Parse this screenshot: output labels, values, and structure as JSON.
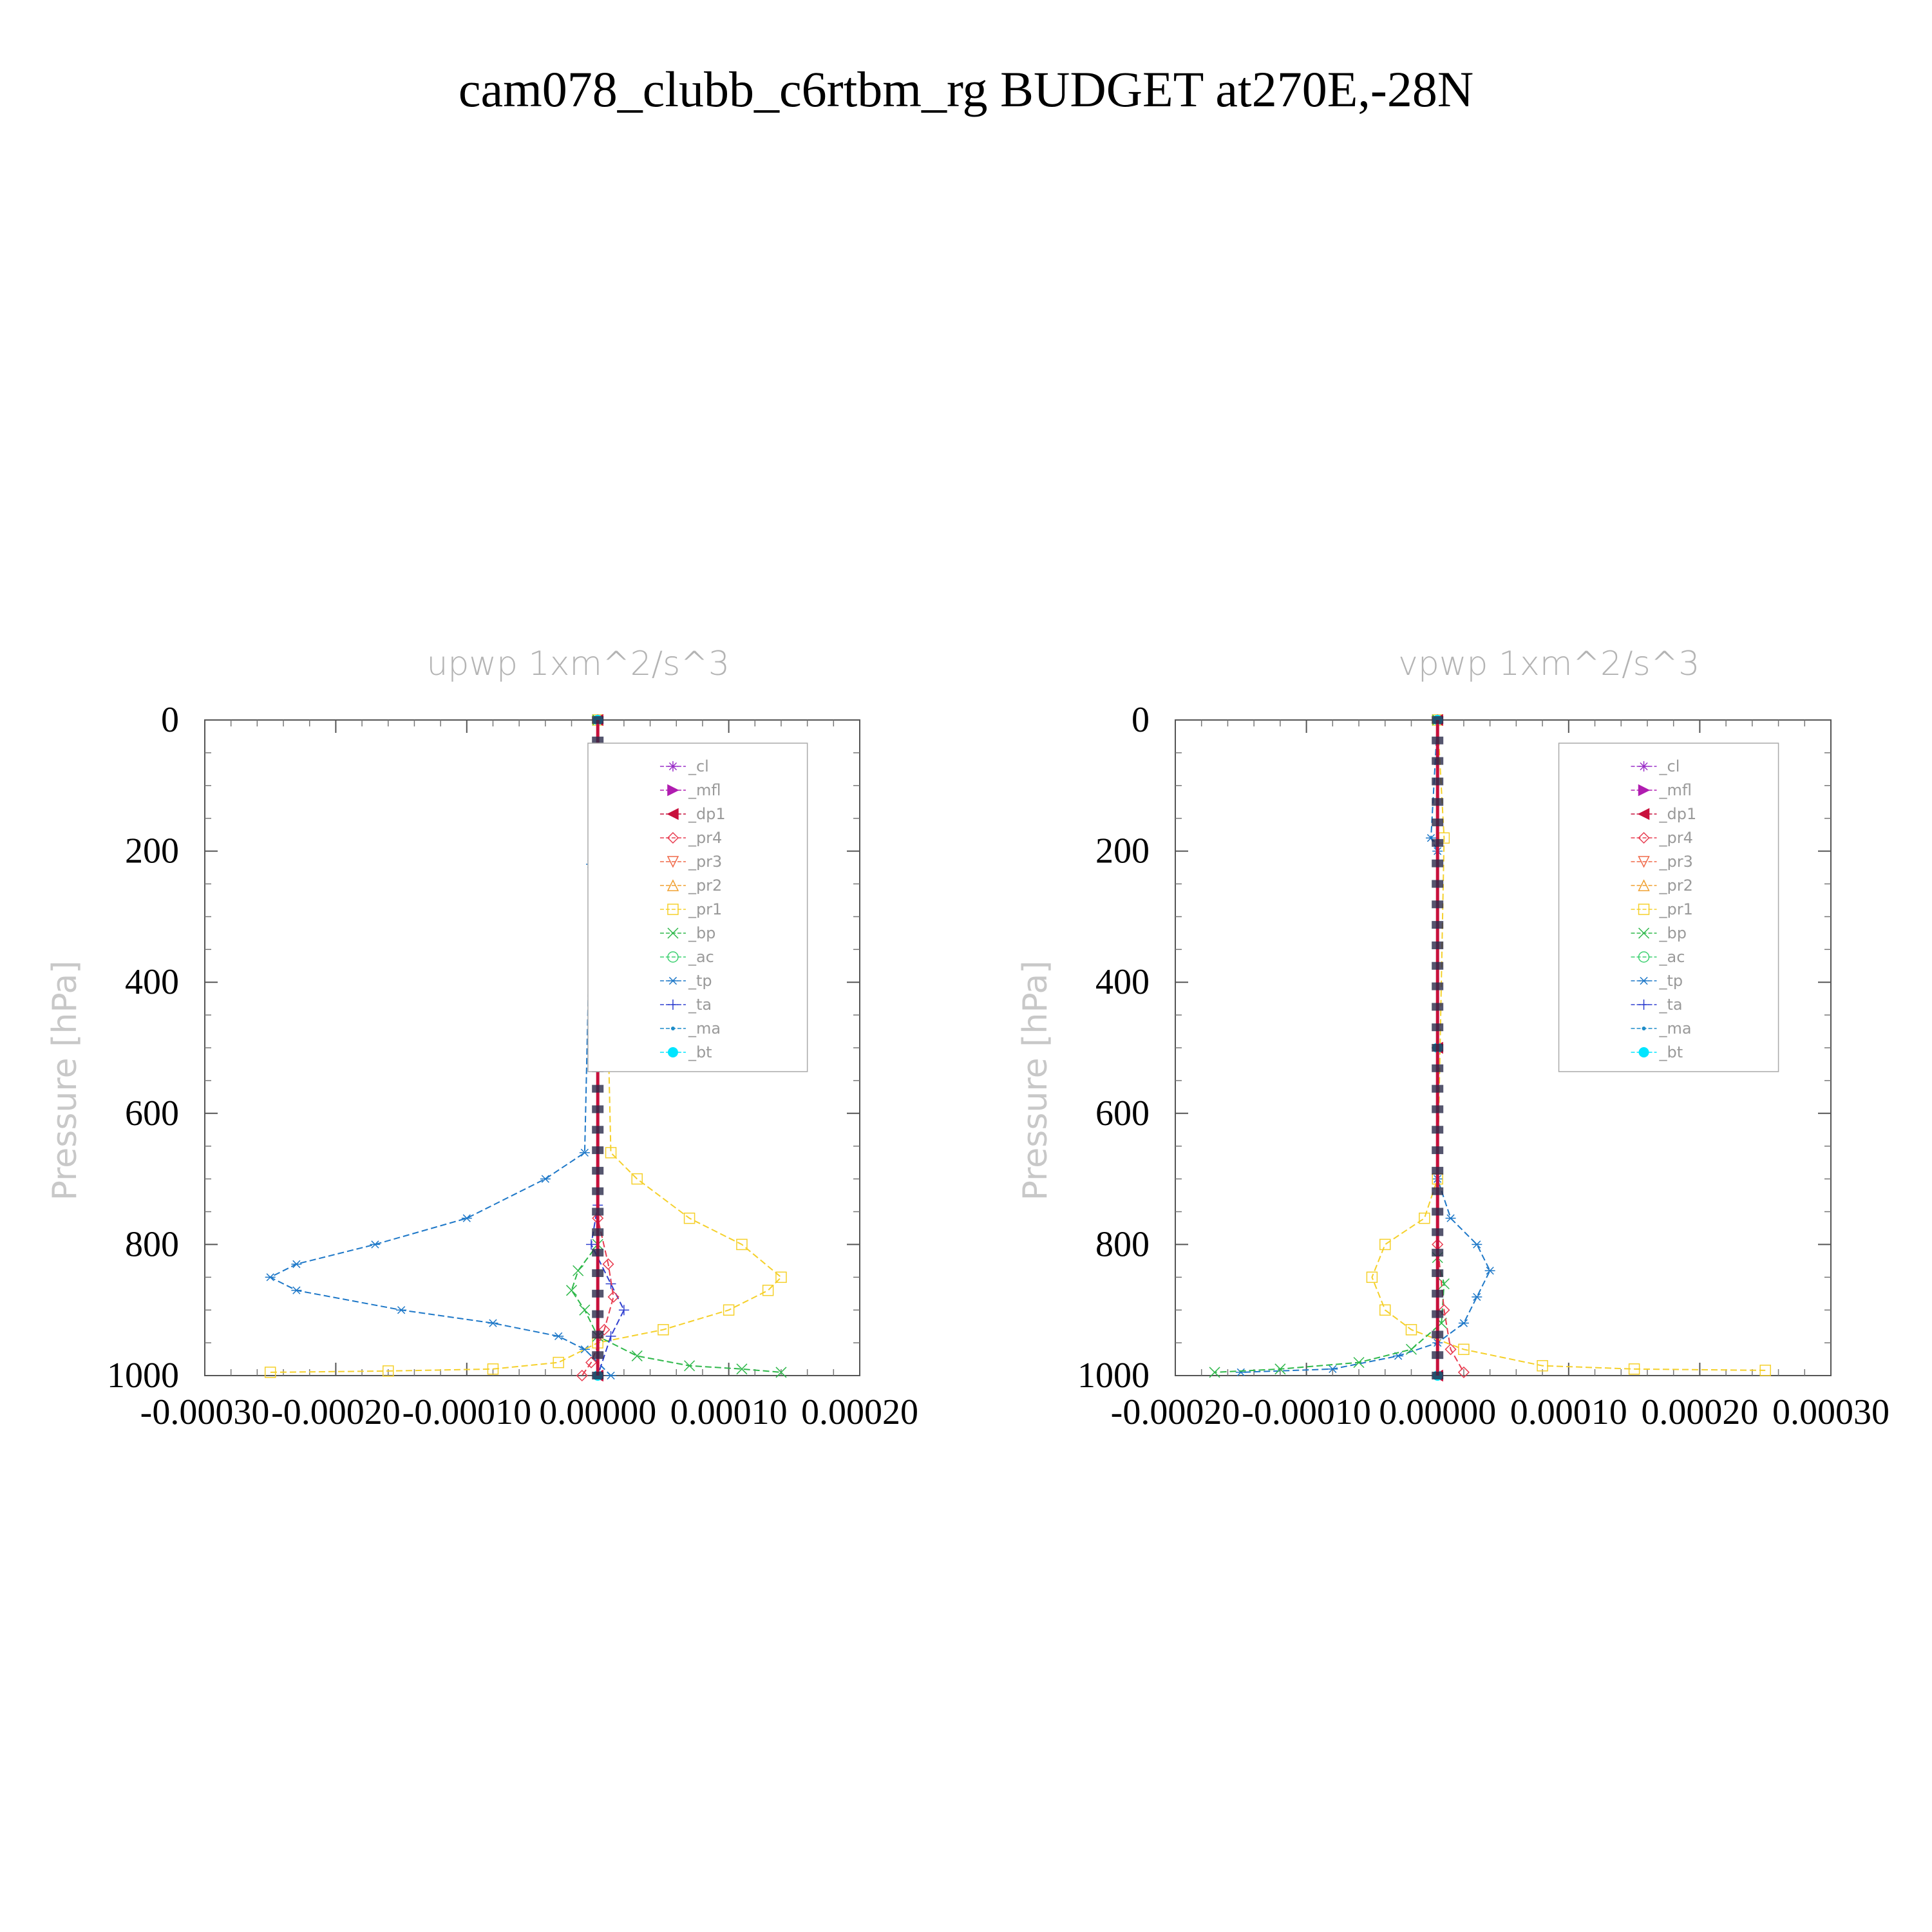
{
  "figure": {
    "title": "cam078_clubb_c6rtbm_rg  BUDGET at270E,-28N"
  },
  "legend_entries": [
    {
      "label": "_cl",
      "color": "#9b30c8",
      "marker": "star"
    },
    {
      "label": "_mfl",
      "color": "#b01cb0",
      "marker": "tri-right"
    },
    {
      "label": "_dp1",
      "color": "#c8103c",
      "marker": "tri-left"
    },
    {
      "label": "_pr4",
      "color": "#e83c50",
      "marker": "diamond"
    },
    {
      "label": "_pr3",
      "color": "#f06848",
      "marker": "tri-down"
    },
    {
      "label": "_pr2",
      "color": "#f0a030",
      "marker": "tri-up"
    },
    {
      "label": "_pr1",
      "color": "#f5d02a",
      "marker": "square"
    },
    {
      "label": "_bp",
      "color": "#2eb84a",
      "marker": "x"
    },
    {
      "label": "_ac",
      "color": "#3cd070",
      "marker": "circle"
    },
    {
      "label": "_tp",
      "color": "#1e78c8",
      "marker": "asterisk"
    },
    {
      "label": "_ta",
      "color": "#3040d0",
      "marker": "plus"
    },
    {
      "label": "_ma",
      "color": "#1e8cc8",
      "marker": "dot"
    },
    {
      "label": "_bt",
      "color": "#00e5ff",
      "marker": "filled-circle"
    }
  ],
  "chart_data": [
    {
      "type": "line",
      "title": "upwp   1xm^2/s^3",
      "ylabel": "Pressure [hPa]",
      "xlabel": "",
      "xlim": [
        -0.0003,
        0.0002
      ],
      "ylim": [
        1000,
        0
      ],
      "xticks": [
        "-0.00030",
        "-0.00020",
        "-0.00010",
        "0.00000",
        "0.00010",
        "0.00020"
      ],
      "yticks": [
        "0",
        "200",
        "400",
        "600",
        "800",
        "1000"
      ],
      "legend_position": "top-right",
      "series": [
        {
          "name": "_tp",
          "color": "#1e78c8",
          "x": [
            0,
            -5e-06,
            -1e-05,
            -4e-05,
            -0.0001,
            -0.00017,
            -0.00023,
            -0.00025,
            -0.00023,
            -0.00015,
            -8e-05,
            -3e-05,
            -1e-05,
            1e-05
          ],
          "y": [
            0,
            220,
            660,
            700,
            760,
            800,
            830,
            850,
            870,
            900,
            920,
            940,
            960,
            1000
          ]
        },
        {
          "name": "_pr1",
          "color": "#f5d02a",
          "x": [
            0,
            5e-06,
            1e-05,
            3e-05,
            7e-05,
            0.00011,
            0.00014,
            0.00013,
            0.0001,
            5e-05,
            0,
            -3e-05,
            -8e-05,
            -0.00016,
            -0.00025
          ],
          "y": [
            0,
            220,
            660,
            700,
            760,
            800,
            850,
            870,
            900,
            930,
            950,
            980,
            990,
            993,
            995
          ]
        },
        {
          "name": "_bp",
          "color": "#2eb84a",
          "x": [
            0,
            0,
            -1.5e-05,
            -2e-05,
            -1e-05,
            0,
            3e-05,
            7e-05,
            0.00011,
            0.00014
          ],
          "y": [
            0,
            800,
            840,
            870,
            900,
            940,
            970,
            985,
            990,
            995
          ]
        },
        {
          "name": "_ta",
          "color": "#3040d0",
          "x": [
            0,
            0,
            -5e-06,
            1e-05,
            2e-05,
            1e-05,
            0
          ],
          "y": [
            0,
            740,
            800,
            860,
            900,
            940,
            1000
          ]
        },
        {
          "name": "_pr4",
          "color": "#e83c50",
          "x": [
            0,
            0,
            8e-06,
            1.2e-05,
            5e-06,
            -5e-06,
            -1.2e-05
          ],
          "y": [
            0,
            760,
            830,
            880,
            930,
            980,
            1000
          ]
        },
        {
          "name": "_dp1",
          "color": "#c8103c",
          "x": [
            0,
            0,
            0
          ],
          "y": [
            0,
            500,
            1000
          ]
        },
        {
          "name": "_bt",
          "color": "#00e5ff",
          "x": [
            0,
            0,
            0
          ],
          "y": [
            0,
            500,
            1000
          ]
        }
      ]
    },
    {
      "type": "line",
      "title": "vpwp   1xm^2/s^3",
      "ylabel": "Pressure [hPa]",
      "xlabel": "",
      "xlim": [
        -0.0002,
        0.0003
      ],
      "ylim": [
        1000,
        0
      ],
      "xticks": [
        "-0.00020",
        "-0.00010",
        "0.00000",
        "0.00010",
        "0.00020",
        "0.00030"
      ],
      "yticks": [
        "0",
        "200",
        "400",
        "600",
        "800",
        "1000"
      ],
      "legend_position": "top-right",
      "series": [
        {
          "name": "_tp",
          "color": "#1e78c8",
          "x": [
            0,
            -5e-06,
            0,
            0,
            1e-05,
            3e-05,
            4e-05,
            3e-05,
            2e-05,
            0,
            -3e-05,
            -8e-05,
            -0.00015
          ],
          "y": [
            0,
            180,
            200,
            700,
            760,
            800,
            840,
            880,
            920,
            950,
            970,
            990,
            995
          ]
        },
        {
          "name": "_pr1",
          "color": "#f5d02a",
          "x": [
            0,
            5e-06,
            0,
            -1e-05,
            -4e-05,
            -5e-05,
            -4e-05,
            -2e-05,
            2e-05,
            8e-05,
            0.00015,
            0.00025
          ],
          "y": [
            0,
            180,
            700,
            760,
            800,
            850,
            900,
            930,
            960,
            985,
            990,
            992
          ]
        },
        {
          "name": "_bp",
          "color": "#2eb84a",
          "x": [
            0,
            0,
            5e-06,
            3e-06,
            -2e-05,
            -6e-05,
            -0.00012,
            -0.00017
          ],
          "y": [
            0,
            820,
            860,
            920,
            960,
            980,
            990,
            995
          ]
        },
        {
          "name": "_pr4",
          "color": "#e83c50",
          "x": [
            0,
            0,
            5e-06,
            1e-05,
            2e-05
          ],
          "y": [
            0,
            800,
            900,
            960,
            995
          ]
        },
        {
          "name": "_dp1",
          "color": "#c8103c",
          "x": [
            0,
            0,
            0
          ],
          "y": [
            0,
            500,
            1000
          ]
        },
        {
          "name": "_bt",
          "color": "#00e5ff",
          "x": [
            0,
            0,
            0
          ],
          "y": [
            0,
            500,
            1000
          ]
        }
      ]
    }
  ]
}
